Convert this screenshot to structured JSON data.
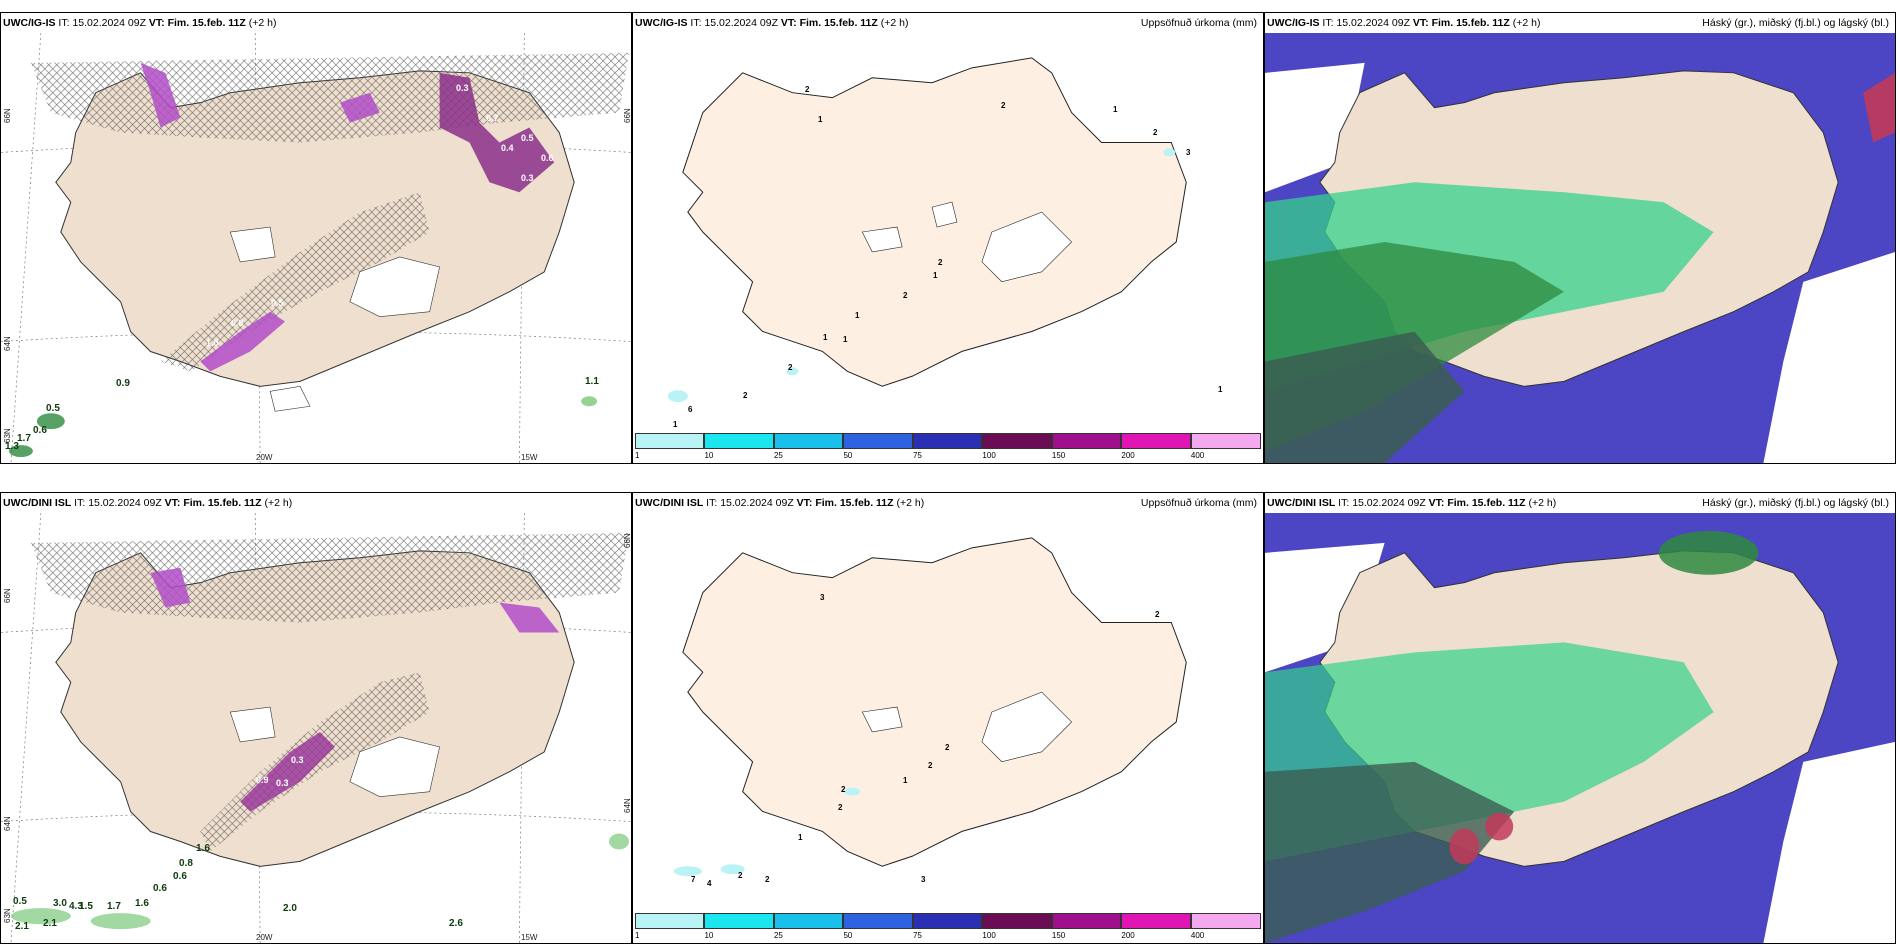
{
  "panels": [
    {
      "id": "top-left",
      "model": "UWC/IG-IS",
      "it_label": "IT:",
      "it_value": "15.02.2024 09Z",
      "vt_label": "VT:",
      "vt_value": "Fim. 15.feb. 11Z",
      "lead": "(+2 h)",
      "right_title": "",
      "ticks": [
        "66N",
        "64N",
        "63N",
        "20W",
        "15W",
        "66N"
      ],
      "labels": [
        "0.9",
        "0.5",
        "0.6",
        "1.3",
        "1.7",
        "1.1",
        "0.3",
        "0.7",
        "0.4",
        "0.5",
        "0.6",
        "0.3",
        "1.0",
        "0.8",
        "0.5",
        "0.3"
      ]
    },
    {
      "id": "top-middle",
      "model": "UWC/IG-IS",
      "it_label": "IT:",
      "it_value": "15.02.2024 09Z",
      "vt_label": "VT:",
      "vt_value": "Fim. 15.feb. 11Z",
      "lead": "(+2 h)",
      "right_title": "Uppsöfnuð úrkoma (mm)",
      "ticks": [],
      "labels": [
        "2",
        "1",
        "2",
        "2",
        "3",
        "2",
        "1",
        "2",
        "1",
        "1",
        "1",
        "1",
        "2",
        "2",
        "6",
        "1",
        "1"
      ]
    },
    {
      "id": "top-right",
      "model": "UWC/IG-IS",
      "it_label": "IT:",
      "it_value": "15.02.2024 09Z",
      "vt_label": "VT:",
      "vt_value": "Fim. 15.feb. 11Z",
      "lead": "(+2 h)",
      "right_title": "Háský (gr.), miðský (fj.bl.) og lágský (bl.)",
      "ticks": [],
      "labels": []
    },
    {
      "id": "bottom-left",
      "model": "UWC/DINI ISL",
      "it_label": "IT:",
      "it_value": "15.02.2024 09Z",
      "vt_label": "VT:",
      "vt_value": "Fim. 15.feb. 11Z",
      "lead": "(+2 h)",
      "right_title": "",
      "ticks": [
        "66N",
        "64N",
        "63N",
        "20W",
        "15W",
        "66N",
        "64N"
      ],
      "labels": [
        "1.6",
        "0.8",
        "0.6",
        "0.6",
        "0.5",
        "3.0",
        "4.3",
        "1.5",
        "1.7",
        "1.6",
        "2.1",
        "2.1",
        "2.0",
        "2.6",
        "0.3",
        "0.9",
        "0.3"
      ]
    },
    {
      "id": "bottom-middle",
      "model": "UWC/DINI ISL",
      "it_label": "IT:",
      "it_value": "15.02.2024 09Z",
      "vt_label": "VT:",
      "vt_value": "Fim. 15.feb. 11Z",
      "lead": "(+2 h)",
      "right_title": "Uppsöfnuð úrkoma (mm)",
      "ticks": [],
      "labels": [
        "3",
        "2",
        "2",
        "2",
        "1",
        "2",
        "2",
        "1",
        "7",
        "4",
        "2",
        "2",
        "3"
      ]
    },
    {
      "id": "bottom-right",
      "model": "UWC/DINI ISL",
      "it_label": "IT:",
      "it_value": "15.02.2024 09Z",
      "vt_label": "VT:",
      "vt_value": "Fim. 15.feb. 11Z",
      "lead": "(+2 h)",
      "right_title": "Háský (gr.), miðský (fj.bl.) og lágský (bl.)",
      "ticks": [],
      "labels": []
    }
  ],
  "precip_colorbar": {
    "labels": [
      "1",
      "10",
      "25",
      "50",
      "75",
      "100",
      "150",
      "200",
      "400"
    ],
    "colors": [
      "#b9f3f6",
      "#19e6ee",
      "#18c0ea",
      "#2f62e0",
      "#2a2fb3",
      "#6b0d55",
      "#a0108c",
      "#e016b4",
      "#f4a8ee"
    ]
  },
  "colors": {
    "land": "#efdfce",
    "land_precip_panel": "#fdf0e2",
    "sea": "#ffffff",
    "high_cloud": "#2e8a3e",
    "mid_cloud": "#35d28c",
    "low_cloud": "#4c45c4",
    "snow": "#b24ec8"
  }
}
